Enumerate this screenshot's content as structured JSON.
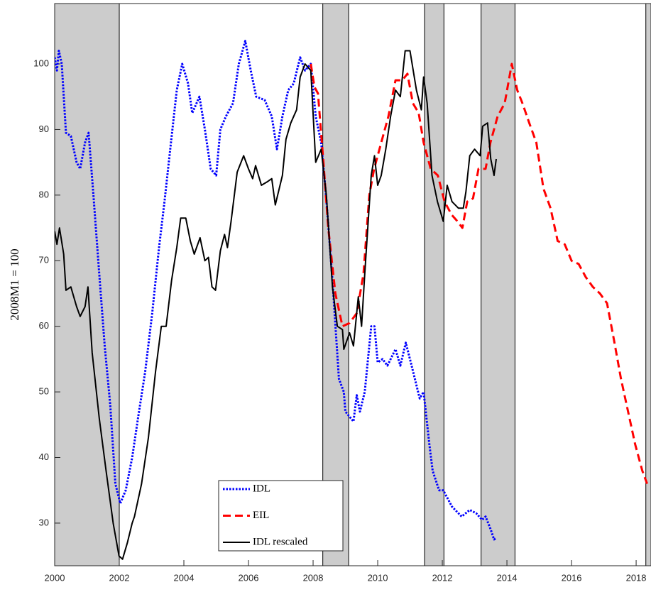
{
  "chart_data": {
    "type": "line",
    "ylabel": "2008M1 = 100",
    "xlim": [
      2000,
      2018.46
    ],
    "xticks": [
      2000,
      2002,
      2004,
      2006,
      2008,
      2010,
      2012,
      2014,
      2016,
      2018
    ],
    "ylim": [
      23.5,
      109.2
    ],
    "yticks": [
      30,
      40,
      50,
      60,
      70,
      80,
      90,
      100
    ],
    "shaded_regions": [
      [
        2000,
        2002
      ],
      [
        2008.3,
        2009.1
      ],
      [
        2011.45,
        2012.05
      ],
      [
        2013.2,
        2014.25
      ],
      [
        2018.3,
        2018.46
      ]
    ],
    "shade_color": "#cccccc",
    "legend": "bottom",
    "series": [
      {
        "name": "IDL",
        "color": "#0000ff",
        "style": "dotted",
        "x": [
          2000,
          2000.07,
          2000.13,
          2000.22,
          2000.35,
          2000.5,
          2000.68,
          2000.79,
          2000.94,
          2001.05,
          2001.2,
          2001.38,
          2001.55,
          2001.72,
          2001.88,
          2002.03,
          2002.2,
          2002.4,
          2002.58,
          2002.8,
          2003.02,
          2003.23,
          2003.4,
          2003.6,
          2003.78,
          2003.95,
          2004.13,
          2004.26,
          2004.48,
          2004.65,
          2004.83,
          2005.0,
          2005.13,
          2005.3,
          2005.52,
          2005.7,
          2005.9,
          2006.07,
          2006.24,
          2006.5,
          2006.72,
          2006.88,
          2007.05,
          2007.23,
          2007.4,
          2007.6,
          2007.75,
          2007.93,
          2008.08,
          2008.25,
          2008.4,
          2008.6,
          2008.8,
          2008.95,
          2009.0,
          2009.25,
          2009.35,
          2009.45,
          2009.6,
          2009.8,
          2009.9,
          2010.0,
          2010.15,
          2010.3,
          2010.55,
          2010.7,
          2010.87,
          2011.05,
          2011.3,
          2011.42,
          2011.6,
          2011.7,
          2011.9,
          2012.03,
          2012.3,
          2012.6,
          2012.85,
          2013.05,
          2013.23,
          2013.34,
          2013.5,
          2013.6,
          2013.67
        ],
        "values": [
          101,
          99,
          102,
          100,
          89.5,
          89,
          85,
          84,
          88,
          89.5,
          80,
          68,
          57,
          48,
          36,
          33,
          35,
          40,
          46,
          53,
          62,
          72,
          79,
          88,
          96,
          100,
          97,
          92.5,
          95,
          90,
          84,
          83,
          90,
          92,
          94,
          100,
          103.5,
          99,
          95,
          94.5,
          92,
          87,
          92,
          96,
          97,
          101,
          99,
          100,
          92,
          88,
          80,
          67,
          52,
          50,
          47,
          45.5,
          49.5,
          47,
          50,
          60,
          60,
          54.5,
          55,
          54,
          56.5,
          54,
          57.5,
          54,
          49,
          50,
          42,
          38,
          35,
          35,
          32.5,
          31,
          32,
          31.5,
          30.5,
          31,
          29,
          27.5,
          27.7
        ]
      },
      {
        "name": "EIL",
        "color": "#ff0000",
        "style": "dashed",
        "x": [
          2007.93,
          2008.04,
          2008.15,
          2008.32,
          2008.47,
          2008.69,
          2008.91,
          2009.13,
          2009.35,
          2009.56,
          2009.74,
          2009.89,
          2010.11,
          2010.33,
          2010.55,
          2010.76,
          2010.92,
          2011.09,
          2011.27,
          2011.42,
          2011.64,
          2011.86,
          2012.07,
          2012.29,
          2012.47,
          2012.62,
          2012.77,
          2012.95,
          2013.12,
          2013.34,
          2013.49,
          2013.71,
          2013.93,
          2014.15,
          2014.32,
          2014.48,
          2014.69,
          2014.91,
          2015.13,
          2015.35,
          2015.57,
          2015.79,
          2016.0,
          2016.22,
          2016.44,
          2016.66,
          2016.88,
          2017.1,
          2017.31,
          2017.53,
          2017.75,
          2017.97,
          2018.19,
          2018.34
        ],
        "values": [
          100,
          96.5,
          95.5,
          85,
          75,
          65,
          60,
          60.5,
          62,
          68,
          80,
          84,
          88,
          92,
          97.5,
          97.5,
          98.5,
          94,
          92.5,
          88,
          84,
          83,
          79,
          77,
          76,
          75,
          79,
          79.5,
          84,
          84,
          88,
          92,
          94,
          100,
          96,
          94,
          91,
          88,
          81,
          78,
          73,
          72.5,
          70,
          69.5,
          67.5,
          66,
          65,
          63.5,
          58,
          52,
          47,
          42,
          38,
          36
        ]
      },
      {
        "name": "IDL rescaled",
        "color": "#000000",
        "style": "solid",
        "x": [
          2000,
          2000.07,
          2000.15,
          2000.28,
          2000.35,
          2000.5,
          2000.68,
          2000.79,
          2000.94,
          2001.03,
          2001.16,
          2001.38,
          2001.59,
          2001.81,
          2001.99,
          2002.1,
          2002.25,
          2002.4,
          2002.47,
          2002.69,
          2002.9,
          2003.12,
          2003.3,
          2003.45,
          2003.62,
          2003.78,
          2003.9,
          2004.06,
          2004.2,
          2004.32,
          2004.5,
          2004.65,
          2004.76,
          2004.87,
          2004.98,
          2005.13,
          2005.26,
          2005.35,
          2005.46,
          2005.65,
          2005.85,
          2006.0,
          2006.13,
          2006.22,
          2006.4,
          2006.57,
          2006.72,
          2006.83,
          2007.05,
          2007.16,
          2007.31,
          2007.49,
          2007.6,
          2007.75,
          2007.93,
          2008.08,
          2008.25,
          2008.41,
          2008.6,
          2008.75,
          2008.91,
          2008.95,
          2009.13,
          2009.25,
          2009.4,
          2009.5,
          2009.6,
          2009.8,
          2009.9,
          2010.0,
          2010.11,
          2010.25,
          2010.4,
          2010.55,
          2010.7,
          2010.85,
          2011.0,
          2011.2,
          2011.35,
          2011.42,
          2011.53,
          2011.68,
          2011.85,
          2012.03,
          2012.15,
          2012.3,
          2012.5,
          2012.65,
          2012.73,
          2012.85,
          2013.0,
          2013.17,
          2013.25,
          2013.4,
          2013.5,
          2013.6,
          2013.67
        ],
        "values": [
          74.5,
          72.5,
          75,
          71,
          65.5,
          66,
          63,
          61.5,
          63,
          66,
          56,
          46,
          38,
          30,
          25,
          24.5,
          27,
          30,
          31,
          36,
          43,
          53,
          60,
          60,
          67,
          72,
          76.5,
          76.5,
          73,
          71,
          73.5,
          70,
          70.5,
          66,
          65.5,
          71.5,
          74,
          72,
          76,
          83.5,
          86,
          84,
          82.5,
          84.5,
          81.5,
          82,
          82.5,
          78.5,
          83,
          88.5,
          91,
          93,
          98,
          100,
          99,
          85,
          87,
          80,
          66,
          60,
          59.5,
          56.5,
          59,
          57,
          64.5,
          60,
          68,
          83,
          86,
          81.5,
          83,
          87,
          92,
          96,
          95,
          102,
          102,
          96,
          93,
          98,
          94,
          83,
          79,
          76,
          81.5,
          79,
          78,
          78,
          80.5,
          86,
          87,
          86,
          90.5,
          91,
          85.5,
          83,
          85.5
        ]
      }
    ]
  }
}
